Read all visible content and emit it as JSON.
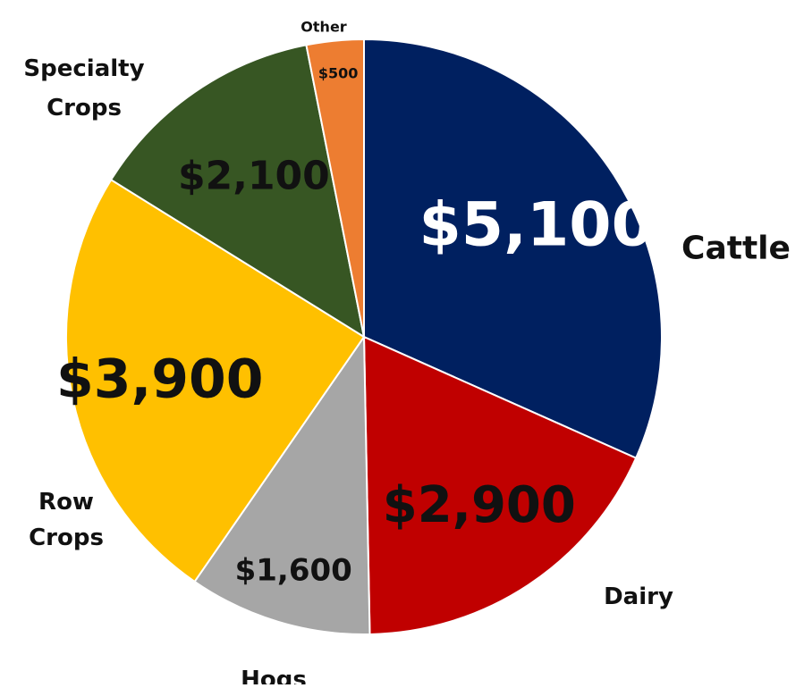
{
  "chart_data": {
    "type": "pie",
    "title": "",
    "start_angle_deg": 0,
    "direction": "clockwise",
    "categories": [
      "Cattle",
      "Dairy",
      "Hogs",
      "Row Crops",
      "Specialty Crops",
      "Other"
    ],
    "values": [
      5100,
      2900,
      1600,
      3900,
      2100,
      500
    ],
    "value_labels": [
      "$5,100",
      "$2,900",
      "$1,600",
      "$3,900",
      "$2,100",
      "$500"
    ],
    "category_labels": [
      [
        "Cattle"
      ],
      [
        "Dairy"
      ],
      [
        "Hogs"
      ],
      [
        "Row",
        "Crops"
      ],
      [
        "Specialty",
        "Crops"
      ],
      [
        "Other"
      ]
    ],
    "colors": [
      "#002060",
      "#C00000",
      "#A6A6A6",
      "#FFC000",
      "#375623",
      "#ED7D31"
    ],
    "value_label_colors": [
      "#ffffff",
      "#111111",
      "#111111",
      "#111111",
      "#111111",
      "#111111"
    ],
    "legend": "none"
  }
}
